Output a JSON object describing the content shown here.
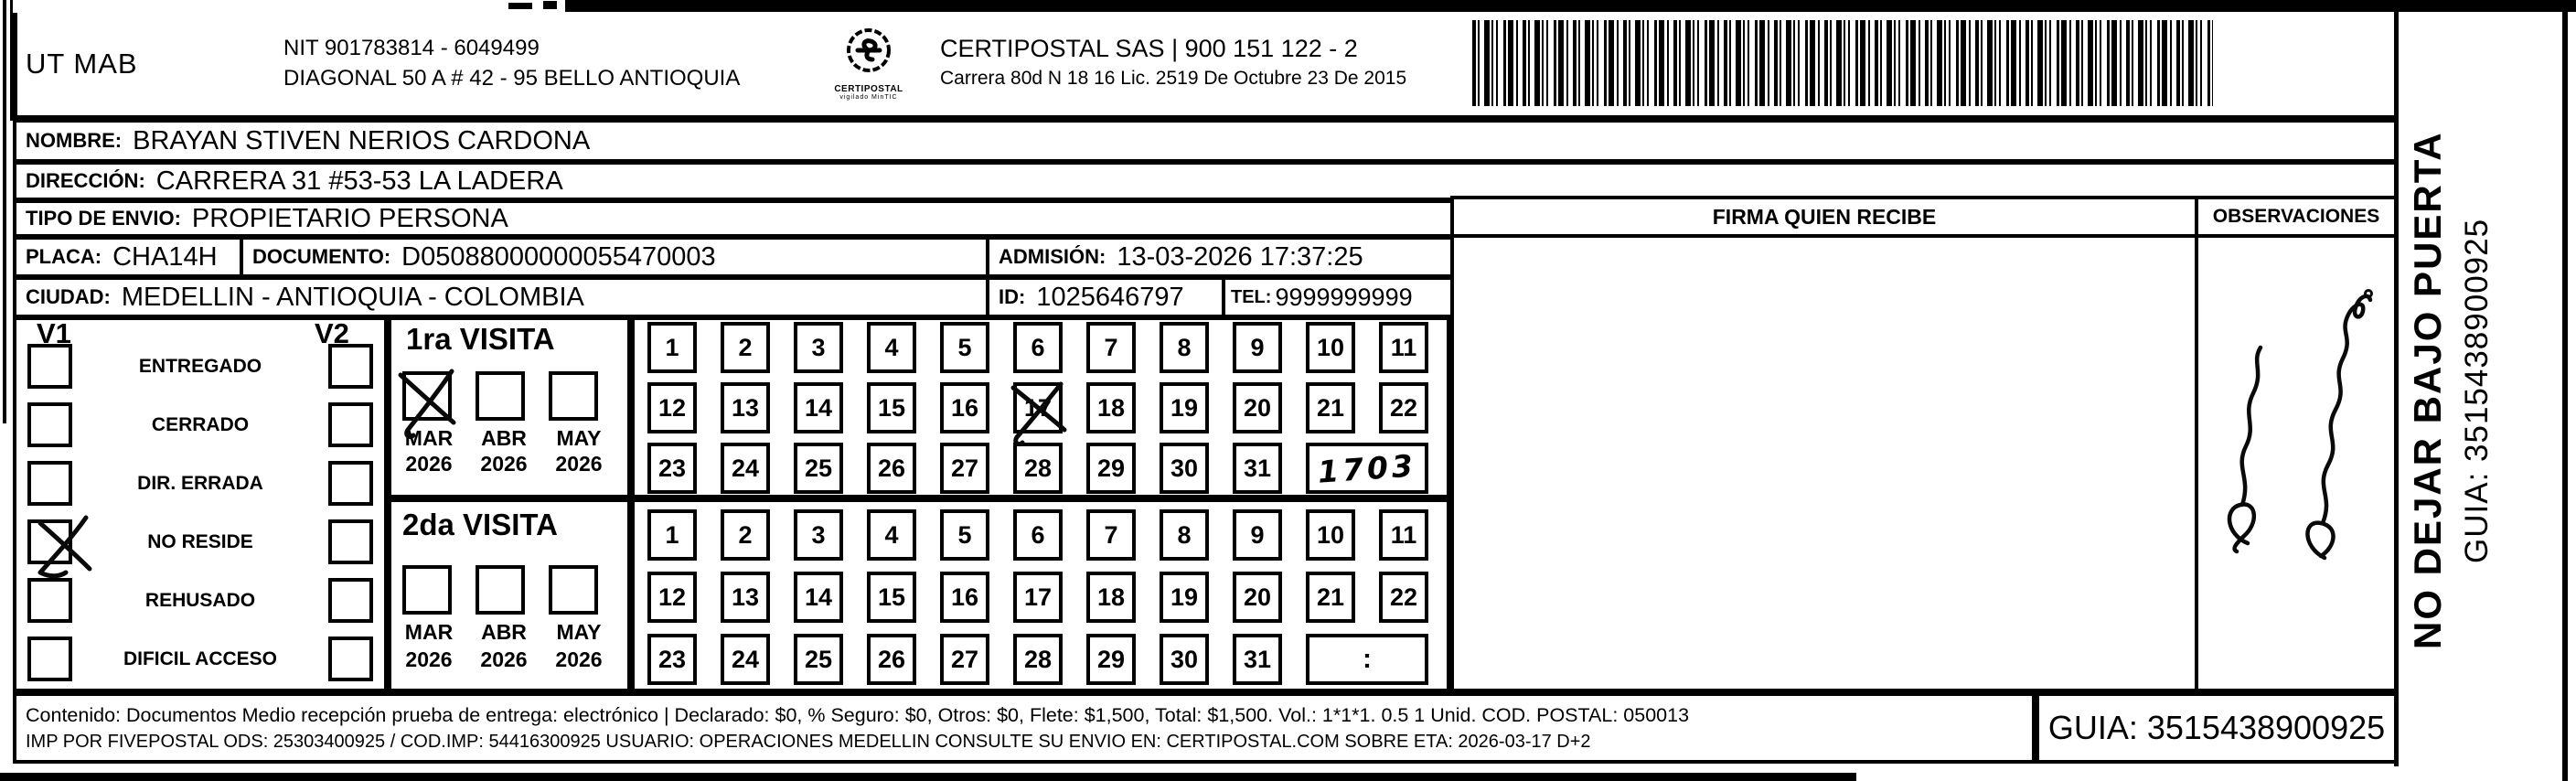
{
  "header": {
    "client_code": "UT MAB",
    "nit_line": "NIT 901783814 - 6049499",
    "address_line": "DIAGONAL 50 A # 42 - 95  BELLO  ANTIOQUIA",
    "logo_caption": "CERTIPOSTAL",
    "logo_subline": "vigilado MinTIC",
    "carrier_line": "CERTIPOSTAL SAS | 900 151 122 - 2",
    "carrier_address": "Carrera 80d N 18 16  Lic. 2519 De Octubre 23 De 2015"
  },
  "recipient": {
    "nombre_label": "NOMBRE:",
    "nombre": "BRAYAN STIVEN NERIOS CARDONA",
    "direccion_label": "DIRECCIÓN:",
    "direccion": "CARRERA 31 #53-53 LA LADERA",
    "tipo_label": "TIPO DE ENVIO:",
    "tipo": "PROPIETARIO PERSONA",
    "placa_label": "PLACA:",
    "placa": "CHA14H",
    "documento_label": "DOCUMENTO:",
    "documento": "D05088000000055470003",
    "admision_label": "ADMISIÓN:",
    "admision": "13-03-2026 17:37:25",
    "ciudad_label": "CIUDAD:",
    "ciudad": "MEDELLIN - ANTIOQUIA - COLOMBIA",
    "id_label": "ID:",
    "id_value": "1025646797",
    "tel_label": "TEL:",
    "tel": "9999999999"
  },
  "delivery": {
    "firma_header": "FIRMA QUIEN RECIBE",
    "observaciones_header": "OBSERVACIONES",
    "v1_label": "V1",
    "v2_label": "V2",
    "status_options": [
      "ENTREGADO",
      "CERRADO",
      "DIR. ERRADA",
      "NO RESIDE",
      "REHUSADO",
      "DIFICIL ACCESO"
    ],
    "v1_checked_option": "NO RESIDE"
  },
  "visita1": {
    "title": "1ra VISITA",
    "months": [
      "MAR",
      "ABR",
      "MAY"
    ],
    "years": [
      "2026",
      "2026",
      "2026"
    ],
    "checked_month": "MAR 2026",
    "crossed_day": "17",
    "time_handwritten": "1703"
  },
  "visita2": {
    "title": "2da VISITA",
    "months": [
      "MAR",
      "ABR",
      "MAY"
    ],
    "years": [
      "2026",
      "2026",
      "2026"
    ],
    "time_box": ":"
  },
  "calendar": {
    "row1": [
      "1",
      "2",
      "3",
      "4",
      "5",
      "6",
      "7",
      "8",
      "9",
      "10",
      "11"
    ],
    "row2": [
      "12",
      "13",
      "14",
      "15",
      "16",
      "17",
      "18",
      "19",
      "20",
      "21",
      "22"
    ],
    "row3": [
      "23",
      "24",
      "25",
      "26",
      "27",
      "28",
      "29",
      "30",
      "31"
    ]
  },
  "strip": {
    "warning": "NO DEJAR BAJO PUERTA",
    "guia": "GUIA: 3515438900925"
  },
  "footer": {
    "line1": "Contenido: Documentos Medio recepción prueba de entrega: electrónico | Declarado: $0, % Seguro: $0, Otros: $0, Flete: $1,500, Total: $1,500. Vol.: 1*1*1. 0.5  1 Unid. COD. POSTAL: 050013",
    "line2": "IMP POR FIVEPOSTAL ODS: 25303400925 / COD.IMP: 54416300925 USUARIO: OPERACIONES MEDELLIN CONSULTE SU ENVIO EN: CERTIPOSTAL.COM SOBRE ETA: 2026-03-17 D+2",
    "guia": "GUIA: 3515438900925"
  }
}
